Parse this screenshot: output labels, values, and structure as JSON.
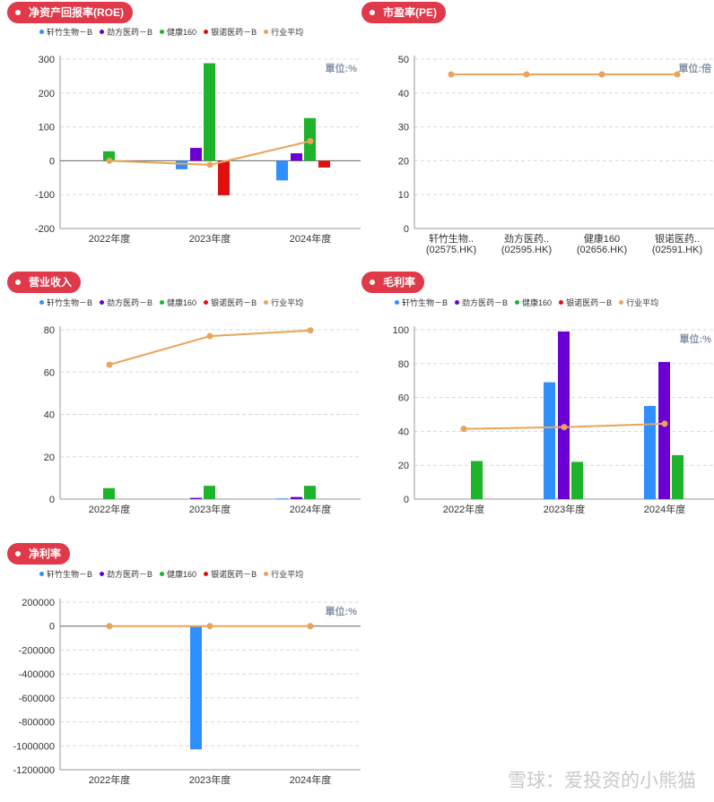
{
  "series_names": [
    "轩竹生物－B",
    "劲方医药－B",
    "健康160",
    "银诺医药－B",
    "行业平均"
  ],
  "colors": {
    "s1": "#2f8fff",
    "s2": "#6a00d4",
    "s3": "#1db32a",
    "s4": "#e01010",
    "avg": "#e8a45a",
    "pill": "#e0394a"
  },
  "watermark": "雪球：爱投资的小熊猫",
  "chart_data": [
    {
      "title": "净资产回报率(ROE)",
      "type": "bar",
      "unit": "單位:%",
      "categories": [
        "2022年度",
        "2023年度",
        "2024年度"
      ],
      "ylim": [
        -200,
        300
      ],
      "yticks": [
        -200,
        -100,
        0,
        100,
        200,
        300
      ],
      "series": [
        {
          "name": "轩竹生物－B",
          "values": [
            null,
            -25,
            -58
          ]
        },
        {
          "name": "劲方医药－B",
          "values": [
            null,
            38,
            22
          ]
        },
        {
          "name": "健康160",
          "values": [
            28,
            288,
            126
          ]
        },
        {
          "name": "银诺医药－B",
          "values": [
            null,
            -102,
            -20
          ]
        },
        {
          "name": "行业平均",
          "type": "line",
          "values": [
            0,
            -12,
            58
          ]
        }
      ]
    },
    {
      "title": "市盈率(PE)",
      "type": "line",
      "unit": "單位:倍",
      "categories": [
        "轩竹生物..\n(02575.HK)",
        "劲方医药..\n(02595.HK)",
        "健康160\n(02656.HK)",
        "银诺医药..\n(02591.HK)"
      ],
      "ylim": [
        0,
        50
      ],
      "yticks": [
        0,
        10,
        20,
        30,
        40,
        50
      ],
      "series": [
        {
          "name": "行业平均",
          "type": "line",
          "values": [
            45.5,
            45.5,
            45.5,
            45.5
          ]
        }
      ]
    },
    {
      "title": "营业收入",
      "type": "bar",
      "unit": "",
      "categories": [
        "2022年度",
        "2023年度",
        "2024年度"
      ],
      "ylim": [
        0,
        80
      ],
      "yticks": [
        0,
        20,
        40,
        60,
        80
      ],
      "series": [
        {
          "name": "轩竹生物－B",
          "values": [
            null,
            null,
            0.3
          ]
        },
        {
          "name": "劲方医药－B",
          "values": [
            null,
            0.6,
            1.0
          ]
        },
        {
          "name": "健康160",
          "values": [
            5.2,
            6.3,
            6.3
          ]
        },
        {
          "name": "银诺医药－B",
          "values": [
            null,
            null,
            null
          ]
        },
        {
          "name": "行业平均",
          "type": "line",
          "values": [
            63.5,
            77.0,
            79.7
          ]
        }
      ]
    },
    {
      "title": "毛利率",
      "type": "bar",
      "unit": "單位:%",
      "categories": [
        "2022年度",
        "2023年度",
        "2024年度"
      ],
      "ylim": [
        0,
        100
      ],
      "yticks": [
        0,
        20,
        40,
        60,
        80,
        100
      ],
      "series": [
        {
          "name": "轩竹生物－B",
          "values": [
            null,
            69,
            55
          ]
        },
        {
          "name": "劲方医药－B",
          "values": [
            null,
            99,
            81
          ]
        },
        {
          "name": "健康160",
          "values": [
            22.5,
            22,
            26
          ]
        },
        {
          "name": "银诺医药－B",
          "values": [
            null,
            null,
            null
          ]
        },
        {
          "name": "行业平均",
          "type": "line",
          "values": [
            41.5,
            42.5,
            44.5
          ]
        }
      ]
    },
    {
      "title": "净利率",
      "type": "bar",
      "unit": "單位:%",
      "categories": [
        "2022年度",
        "2023年度",
        "2024年度"
      ],
      "ylim": [
        -1200000,
        200000
      ],
      "yticks": [
        -1200000,
        -1000000,
        -800000,
        -600000,
        -400000,
        -200000,
        0,
        200000
      ],
      "series": [
        {
          "name": "轩竹生物－B",
          "values": [
            null,
            -1030000,
            null
          ]
        },
        {
          "name": "劲方医药－B",
          "values": [
            null,
            null,
            null
          ]
        },
        {
          "name": "健康160",
          "values": [
            null,
            null,
            null
          ]
        },
        {
          "name": "银诺医药－B",
          "values": [
            null,
            null,
            null
          ]
        },
        {
          "name": "行业平均",
          "type": "line",
          "values": [
            0,
            0,
            0
          ]
        }
      ]
    }
  ]
}
